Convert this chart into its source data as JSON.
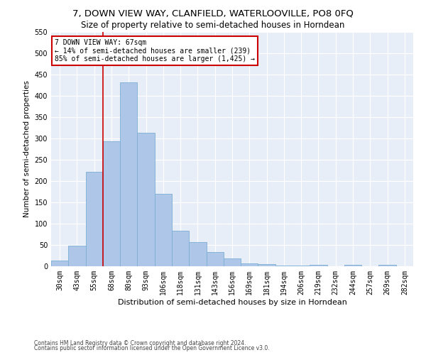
{
  "title": "7, DOWN VIEW WAY, CLANFIELD, WATERLOOVILLE, PO8 0FQ",
  "subtitle": "Size of property relative to semi-detached houses in Horndean",
  "xlabel": "Distribution of semi-detached houses by size in Horndean",
  "ylabel": "Number of semi-detached properties",
  "categories": [
    "30sqm",
    "43sqm",
    "55sqm",
    "68sqm",
    "80sqm",
    "93sqm",
    "106sqm",
    "118sqm",
    "131sqm",
    "143sqm",
    "156sqm",
    "169sqm",
    "181sqm",
    "194sqm",
    "206sqm",
    "219sqm",
    "232sqm",
    "244sqm",
    "257sqm",
    "269sqm",
    "282sqm"
  ],
  "values": [
    14,
    49,
    221,
    294,
    432,
    313,
    170,
    84,
    57,
    34,
    18,
    6,
    5,
    1,
    1,
    4,
    0,
    3,
    0,
    4,
    0
  ],
  "bar_color": "#aec6e8",
  "bar_edge_color": "#7bafd4",
  "vline_x_index": 3,
  "vline_color": "#cc0000",
  "annotation_text": "7 DOWN VIEW WAY: 67sqm\n← 14% of semi-detached houses are smaller (239)\n85% of semi-detached houses are larger (1,425) →",
  "annotation_box_color": "#ffffff",
  "annotation_box_edge_color": "#cc0000",
  "ylim": [
    0,
    550
  ],
  "yticks": [
    0,
    50,
    100,
    150,
    200,
    250,
    300,
    350,
    400,
    450,
    500,
    550
  ],
  "bg_color": "#e8eef7",
  "footer_line1": "Contains HM Land Registry data © Crown copyright and database right 2024.",
  "footer_line2": "Contains public sector information licensed under the Open Government Licence v3.0.",
  "title_fontsize": 9.5,
  "subtitle_fontsize": 8.5,
  "xlabel_fontsize": 8,
  "ylabel_fontsize": 7.5,
  "tick_fontsize": 7,
  "annotation_fontsize": 7,
  "footer_fontsize": 5.5
}
